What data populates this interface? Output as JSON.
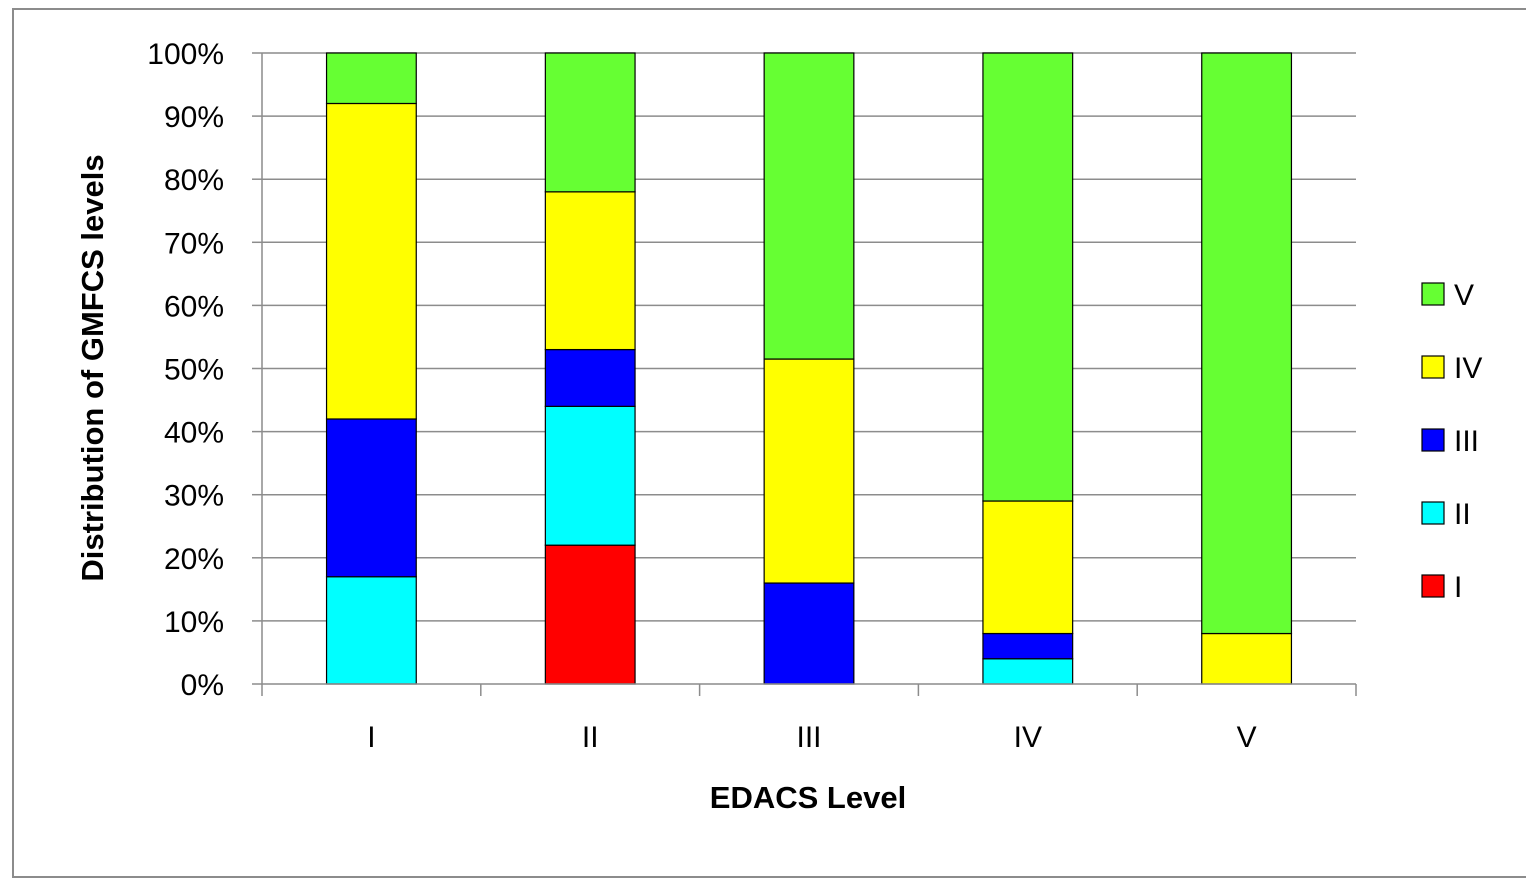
{
  "chart_data": {
    "type": "bar",
    "stacked": true,
    "percent_stacked": true,
    "title": "",
    "xlabel": "EDACS Level",
    "ylabel": "Distribution of GMFCS levels",
    "ylim": [
      0,
      100
    ],
    "yticks": [
      "0%",
      "10%",
      "20%",
      "30%",
      "40%",
      "50%",
      "60%",
      "70%",
      "80%",
      "90%",
      "100%"
    ],
    "grid": true,
    "legend_position": "right",
    "categories": [
      "I",
      "II",
      "III",
      "IV",
      "V"
    ],
    "series": [
      {
        "name": "I",
        "color": "#ff0000",
        "values": [
          0,
          22,
          0,
          0,
          0
        ]
      },
      {
        "name": "II",
        "color": "#00ffff",
        "values": [
          17,
          22,
          0,
          4,
          0
        ]
      },
      {
        "name": "III",
        "color": "#0000ff",
        "values": [
          25,
          9,
          16,
          4,
          0
        ]
      },
      {
        "name": "IV",
        "color": "#ffff00",
        "values": [
          50,
          25,
          35.5,
          21,
          8
        ]
      },
      {
        "name": "V",
        "color": "#66ff33",
        "values": [
          8,
          22,
          48.5,
          71,
          92
        ]
      }
    ],
    "legend_order": [
      "V",
      "IV",
      "III",
      "II",
      "I"
    ]
  }
}
